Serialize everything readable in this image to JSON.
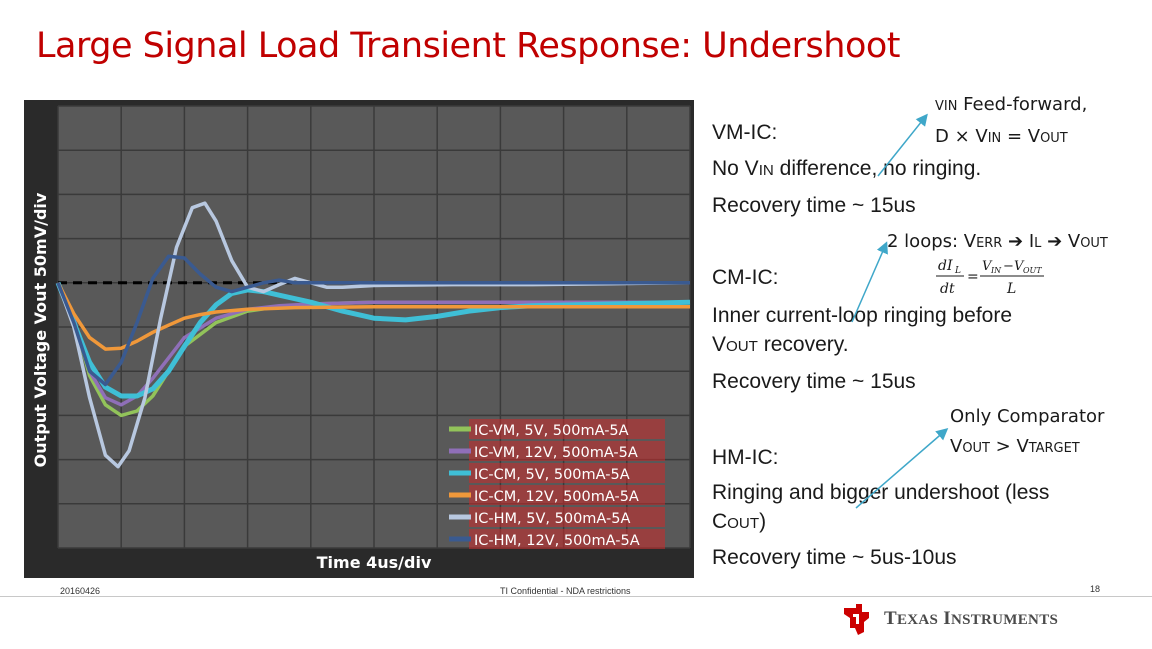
{
  "slide": {
    "title": "Large Signal Load Transient Response: Undershoot",
    "date": "20160426",
    "confidential": "TI Confidential - NDA restrictions",
    "page_number": "18",
    "company": "Texas Instruments"
  },
  "notes": {
    "vm_label": "VM-IC:",
    "vm_ann1": "Feed-forward,",
    "vm_line1": "No V",
    "vm_line1_rest": " difference, no ringing.",
    "vm_recovery": "Recovery time ~ 15us",
    "cm_ann": "2 loops: V",
    "cm_label": "CM-IC:",
    "cm_line1": "Inner current-loop ringing before",
    "cm_line2": " recovery.",
    "cm_recovery": "Recovery time ~ 15us",
    "hm_ann1": "Only Comparator",
    "hm_label": "HM-IC:",
    "hm_line1": "Ringing and bigger undershoot (less",
    "hm_recovery": "Recovery time ~ 5us-10us"
  },
  "chart_data": {
    "type": "line",
    "title": "",
    "xlabel": "Time  4us/div",
    "ylabel": "Output Voltage  Vout  50mV/div",
    "xlim": [
      0,
      40
    ],
    "ylim": [
      -300,
      200
    ],
    "grid": true,
    "legend_position": "bottom-right",
    "reference_line_y": 0,
    "series": [
      {
        "name": "IC-VM, 5V, 500mA-5A",
        "color": "#92c35a",
        "points": [
          [
            0,
            0
          ],
          [
            1,
            -40
          ],
          [
            2,
            -105
          ],
          [
            3,
            -138
          ],
          [
            4,
            -150
          ],
          [
            5,
            -145
          ],
          [
            6,
            -128
          ],
          [
            7,
            -100
          ],
          [
            8,
            -72
          ],
          [
            10,
            -45
          ],
          [
            12,
            -32
          ],
          [
            14,
            -27
          ],
          [
            16,
            -24
          ],
          [
            20,
            -22
          ],
          [
            25,
            -22
          ],
          [
            30,
            -22
          ],
          [
            35,
            -22
          ],
          [
            40,
            -22
          ]
        ]
      },
      {
        "name": "IC-VM, 12V, 500mA-5A",
        "color": "#8f6fb8",
        "points": [
          [
            0,
            0
          ],
          [
            1,
            -40
          ],
          [
            2,
            -100
          ],
          [
            3,
            -130
          ],
          [
            4,
            -138
          ],
          [
            5,
            -128
          ],
          [
            6,
            -108
          ],
          [
            7,
            -85
          ],
          [
            8,
            -62
          ],
          [
            10,
            -40
          ],
          [
            12,
            -30
          ],
          [
            14,
            -26
          ],
          [
            16,
            -24
          ],
          [
            20,
            -22
          ],
          [
            25,
            -22
          ],
          [
            30,
            -22
          ],
          [
            35,
            -22
          ],
          [
            40,
            -22
          ]
        ]
      },
      {
        "name": "IC-CM, 5V, 500mA-5A",
        "color": "#3fbfd6",
        "points": [
          [
            0,
            0
          ],
          [
            1,
            -45
          ],
          [
            2,
            -90
          ],
          [
            3,
            -118
          ],
          [
            4,
            -128
          ],
          [
            5,
            -128
          ],
          [
            6,
            -120
          ],
          [
            7,
            -100
          ],
          [
            8,
            -72
          ],
          [
            9,
            -45
          ],
          [
            10,
            -25
          ],
          [
            11,
            -12
          ],
          [
            12,
            -8
          ],
          [
            13,
            -10
          ],
          [
            14,
            -14
          ],
          [
            16,
            -22
          ],
          [
            18,
            -32
          ],
          [
            20,
            -40
          ],
          [
            22,
            -42
          ],
          [
            24,
            -38
          ],
          [
            26,
            -32
          ],
          [
            28,
            -28
          ],
          [
            30,
            -26
          ],
          [
            35,
            -24
          ],
          [
            40,
            -22
          ]
        ]
      },
      {
        "name": "IC-CM, 12V, 500mA-5A",
        "color": "#f0983a",
        "points": [
          [
            0,
            0
          ],
          [
            1,
            -35
          ],
          [
            2,
            -62
          ],
          [
            3,
            -75
          ],
          [
            4,
            -74
          ],
          [
            5,
            -66
          ],
          [
            6,
            -56
          ],
          [
            7,
            -48
          ],
          [
            8,
            -40
          ],
          [
            9,
            -36
          ],
          [
            10,
            -33
          ],
          [
            12,
            -30
          ],
          [
            15,
            -28
          ],
          [
            20,
            -27
          ],
          [
            25,
            -27
          ],
          [
            30,
            -27
          ],
          [
            35,
            -27
          ],
          [
            40,
            -27
          ]
        ]
      },
      {
        "name": "IC-HM, 5V, 500mA-5A",
        "color": "#b8c8e0",
        "points": [
          [
            0,
            0
          ],
          [
            1,
            -50
          ],
          [
            2,
            -130
          ],
          [
            3,
            -195
          ],
          [
            3.8,
            -208
          ],
          [
            4.5,
            -190
          ],
          [
            5.5,
            -130
          ],
          [
            6.5,
            -40
          ],
          [
            7.5,
            40
          ],
          [
            8.5,
            85
          ],
          [
            9.3,
            90
          ],
          [
            10,
            70
          ],
          [
            11,
            25
          ],
          [
            12,
            -5
          ],
          [
            13,
            -10
          ],
          [
            14,
            -2
          ],
          [
            15,
            5
          ],
          [
            16,
            0
          ],
          [
            17,
            -5
          ],
          [
            18,
            -5
          ],
          [
            20,
            -3
          ],
          [
            25,
            -2
          ],
          [
            30,
            -2
          ],
          [
            35,
            -1
          ],
          [
            40,
            0
          ]
        ]
      },
      {
        "name": "IC-HM, 12V, 500mA-5A",
        "color": "#3a5a90",
        "points": [
          [
            0,
            0
          ],
          [
            1,
            -45
          ],
          [
            2,
            -100
          ],
          [
            3,
            -115
          ],
          [
            4,
            -90
          ],
          [
            5,
            -45
          ],
          [
            6,
            5
          ],
          [
            7,
            30
          ],
          [
            8,
            28
          ],
          [
            9,
            10
          ],
          [
            10,
            -5
          ],
          [
            11,
            -10
          ],
          [
            12,
            -5
          ],
          [
            13,
            0
          ],
          [
            14,
            3
          ],
          [
            15,
            0
          ],
          [
            20,
            0
          ],
          [
            25,
            0
          ],
          [
            30,
            0
          ],
          [
            35,
            0
          ],
          [
            40,
            0
          ]
        ]
      }
    ]
  }
}
